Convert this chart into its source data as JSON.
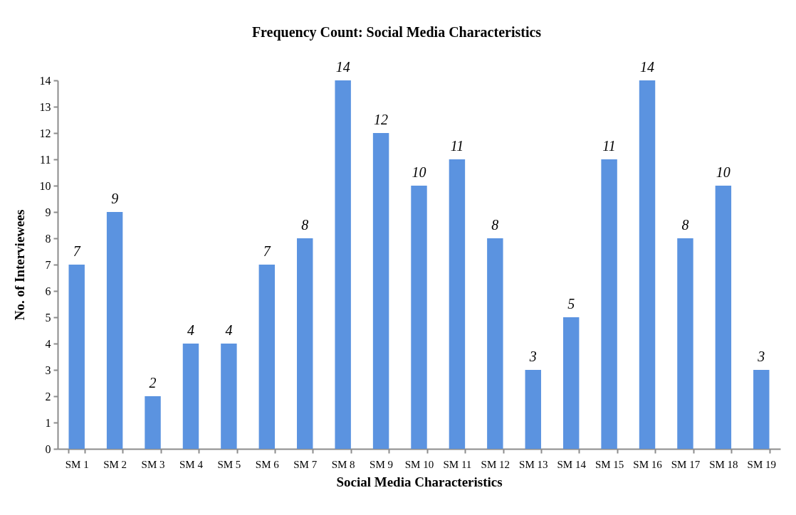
{
  "chart_data": {
    "type": "bar",
    "title": "Frequency Count: Social Media Characteristics",
    "xlabel": "Social Media Characteristics",
    "ylabel": "No. of Interviewees",
    "categories": [
      "SM 1",
      "SM 2",
      "SM 3",
      "SM 4",
      "SM 5",
      "SM 6",
      "SM 7",
      "SM 8",
      "SM 9",
      "SM 10",
      "SM 11",
      "SM 12",
      "SM 13",
      "SM 14",
      "SM 15",
      "SM 16",
      "SM 17",
      "SM 18",
      "SM 19"
    ],
    "values": [
      7,
      9,
      2,
      4,
      4,
      7,
      8,
      14,
      12,
      10,
      11,
      8,
      3,
      5,
      11,
      14,
      8,
      10,
      3
    ],
    "color": "#5b93e0",
    "ylim": [
      0,
      14
    ],
    "yticks": [
      0,
      1,
      2,
      3,
      4,
      5,
      6,
      7,
      8,
      9,
      10,
      11,
      12,
      13,
      14
    ],
    "grid": false,
    "data_labels": true
  }
}
